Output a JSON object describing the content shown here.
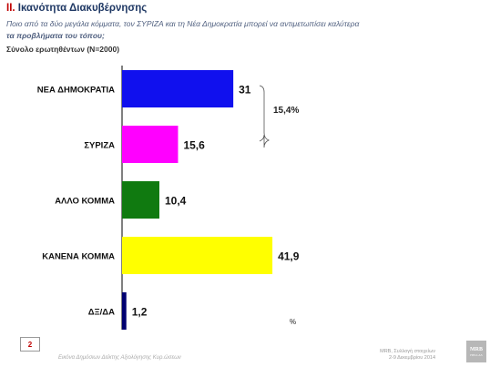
{
  "header": {
    "title_number": "II.",
    "title_text": "Ικανότητα Διακυβέρνησης",
    "question_line1": "Ποιο από τα δύο μεγάλα κόμματα, τον ΣΥΡΙΖΑ και τη Νέα Δημοκρατία μπορεί να αντιμετωπίσει καλύτερα",
    "question_line2": "τα προβλήματα του τόπου;",
    "sample": "Σύνολο ερωτηθέντων (N=2000)"
  },
  "chart_data": {
    "type": "bar",
    "orientation": "horizontal",
    "categories": [
      "ΝΕΑ ΔΗΜΟΚΡΑΤΙΑ",
      "ΣΥΡΙΖΑ",
      "ΑΛΛΟ ΚΟΜΜΑ",
      "ΚΑΝΕΝΑ ΚΟΜΜΑ",
      "ΔΞ/ΔΑ"
    ],
    "values": [
      31,
      15.6,
      10.4,
      41.9,
      1.2
    ],
    "value_labels": [
      "31",
      "15,6",
      "10,4",
      "41,9",
      "1,2"
    ],
    "colors": [
      "#1010ee",
      "#ff00ff",
      "#107a10",
      "#ffff00",
      "#000070"
    ],
    "xlim": [
      0,
      50
    ],
    "grid": false,
    "bracket_label": "15,4%",
    "unit_label": "%"
  },
  "footer": {
    "page_number": "2",
    "left_text": "Εικόνα Δημόσιων Δείκτης Αξιολόγησης Κυρ.ώσεων",
    "right_line1": "MRB, Συλλογή στοιχείων",
    "right_line2": "2-9 Δεκεμβρίου 2014",
    "logo_text": "MRB",
    "logo_sub": "HELLAS"
  }
}
